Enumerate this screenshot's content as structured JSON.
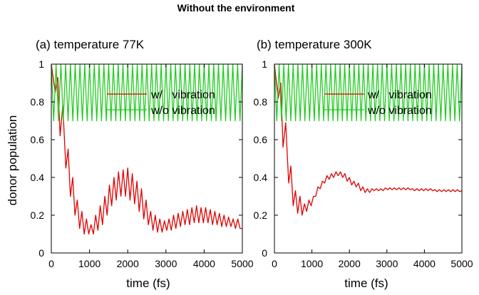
{
  "figure": {
    "title": "Without the environment"
  },
  "chart_data": [
    {
      "type": "line",
      "panel_label": "(a) temperature 77K",
      "xlabel": "time (fs)",
      "ylabel": "donor population",
      "xlim": [
        0,
        5000
      ],
      "ylim": [
        0,
        1
      ],
      "x_ticks": [
        "0",
        "1000",
        "2000",
        "3000",
        "4000",
        "5000"
      ],
      "y_ticks": [
        "0",
        "0.2",
        "0.4",
        "0.6",
        "0.8",
        "1"
      ],
      "legend_position": "top-right",
      "grid": false,
      "series": [
        {
          "name": "w/   vibration",
          "color": "#e00000",
          "x": [
            0,
            100,
            170,
            230,
            300,
            380,
            440,
            500,
            560,
            620,
            680,
            740,
            800,
            860,
            920,
            980,
            1040,
            1100,
            1160,
            1220,
            1280,
            1340,
            1400,
            1460,
            1520,
            1580,
            1640,
            1700,
            1760,
            1820,
            1880,
            1940,
            2000,
            2060,
            2120,
            2180,
            2240,
            2300,
            2360,
            2420,
            2480,
            2540,
            2600,
            2660,
            2720,
            2780,
            2840,
            2900,
            2960,
            3020,
            3080,
            3140,
            3200,
            3260,
            3320,
            3380,
            3440,
            3500,
            3560,
            3620,
            3680,
            3740,
            3800,
            3860,
            3920,
            3980,
            4040,
            4100,
            4160,
            4220,
            4280,
            4340,
            4400,
            4460,
            4520,
            4580,
            4640,
            4700,
            4760,
            4820,
            4880,
            4940,
            5000
          ],
          "values": [
            1.0,
            0.85,
            0.93,
            0.62,
            0.78,
            0.45,
            0.55,
            0.3,
            0.4,
            0.2,
            0.28,
            0.13,
            0.22,
            0.1,
            0.18,
            0.1,
            0.15,
            0.1,
            0.2,
            0.12,
            0.25,
            0.15,
            0.3,
            0.2,
            0.36,
            0.25,
            0.4,
            0.28,
            0.43,
            0.3,
            0.44,
            0.3,
            0.45,
            0.28,
            0.42,
            0.26,
            0.38,
            0.22,
            0.34,
            0.18,
            0.28,
            0.15,
            0.22,
            0.12,
            0.2,
            0.11,
            0.18,
            0.11,
            0.17,
            0.12,
            0.18,
            0.12,
            0.2,
            0.13,
            0.21,
            0.14,
            0.22,
            0.15,
            0.23,
            0.15,
            0.24,
            0.16,
            0.25,
            0.16,
            0.24,
            0.16,
            0.24,
            0.16,
            0.23,
            0.15,
            0.22,
            0.15,
            0.21,
            0.14,
            0.2,
            0.14,
            0.19,
            0.14,
            0.18,
            0.13,
            0.18,
            0.13,
            0.13
          ]
        },
        {
          "name": "w/o vibration",
          "color": "#22cc22",
          "x": [
            0,
            5000
          ],
          "values": [
            1.0,
            0.7
          ],
          "note_oscillation_period_fs": 125,
          "range": [
            0.7,
            1.0
          ]
        }
      ]
    },
    {
      "type": "line",
      "panel_label": "(b) temperature 300K",
      "xlabel": "time (fs)",
      "ylabel": "",
      "xlim": [
        0,
        5000
      ],
      "ylim": [
        0,
        1
      ],
      "x_ticks": [
        "0",
        "1000",
        "2000",
        "3000",
        "4000",
        "5000"
      ],
      "y_ticks": [
        "0",
        "0.2",
        "0.4",
        "0.6",
        "0.8",
        "1"
      ],
      "legend_position": "top-right",
      "grid": false,
      "series": [
        {
          "name": "w/   vibration",
          "color": "#e00000",
          "x": [
            0,
            100,
            170,
            230,
            300,
            380,
            440,
            500,
            560,
            620,
            680,
            740,
            800,
            860,
            920,
            980,
            1040,
            1100,
            1160,
            1220,
            1280,
            1340,
            1400,
            1460,
            1520,
            1580,
            1640,
            1700,
            1760,
            1820,
            1880,
            1940,
            2000,
            2060,
            2120,
            2180,
            2240,
            2300,
            2360,
            2420,
            2480,
            2540,
            2600,
            2660,
            2720,
            2780,
            2840,
            2900,
            2960,
            3020,
            3080,
            3140,
            3200,
            3260,
            3320,
            3380,
            3440,
            3500,
            3560,
            3620,
            3680,
            3740,
            3800,
            3860,
            3920,
            3980,
            4040,
            4100,
            4160,
            4220,
            4280,
            4340,
            4400,
            4460,
            4520,
            4580,
            4640,
            4700,
            4760,
            4820,
            4880,
            4940,
            5000
          ],
          "values": [
            1.0,
            0.82,
            0.9,
            0.56,
            0.69,
            0.37,
            0.46,
            0.25,
            0.33,
            0.21,
            0.3,
            0.2,
            0.26,
            0.22,
            0.28,
            0.25,
            0.3,
            0.3,
            0.35,
            0.34,
            0.38,
            0.37,
            0.41,
            0.39,
            0.42,
            0.4,
            0.43,
            0.41,
            0.43,
            0.4,
            0.42,
            0.38,
            0.4,
            0.36,
            0.38,
            0.35,
            0.37,
            0.33,
            0.35,
            0.32,
            0.34,
            0.32,
            0.34,
            0.33,
            0.34,
            0.33,
            0.34,
            0.33,
            0.345,
            0.335,
            0.345,
            0.335,
            0.345,
            0.335,
            0.345,
            0.335,
            0.345,
            0.335,
            0.345,
            0.335,
            0.34,
            0.33,
            0.34,
            0.33,
            0.34,
            0.33,
            0.34,
            0.33,
            0.34,
            0.33,
            0.335,
            0.325,
            0.335,
            0.325,
            0.335,
            0.325,
            0.335,
            0.325,
            0.335,
            0.325,
            0.335,
            0.325,
            0.33
          ]
        },
        {
          "name": "w/o vibration",
          "color": "#22cc22",
          "x": [
            0,
            5000
          ],
          "values": [
            1.0,
            0.7
          ],
          "note_oscillation_period_fs": 125,
          "range": [
            0.7,
            1.0
          ]
        }
      ]
    }
  ]
}
